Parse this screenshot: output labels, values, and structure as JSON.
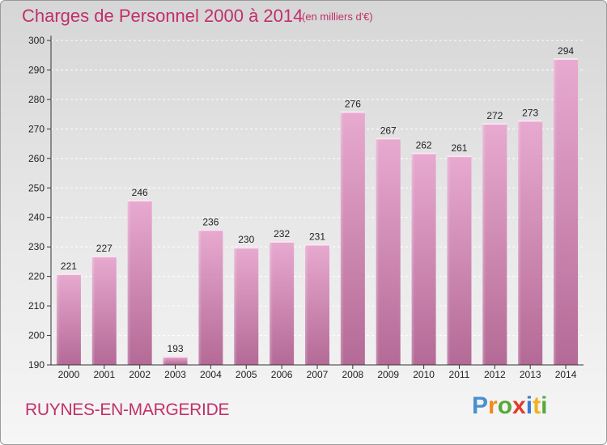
{
  "header": {
    "title": "Charges de Personnel 2000 à 2014",
    "unit": "(en milliers d'€)"
  },
  "footer": {
    "town": "RUYNES-EN-MARGERIDE",
    "logo": "Proxiti"
  },
  "colors": {
    "accent": "#c0306a",
    "bar_light": "#e6a6cc",
    "bar_dark": "#b86e98"
  },
  "chart_data": {
    "type": "bar",
    "title": "Charges de Personnel 2000 à 2014",
    "subtitle": "(en milliers d'€)",
    "categories": [
      "2000",
      "2001",
      "2002",
      "2003",
      "2004",
      "2005",
      "2006",
      "2007",
      "2008",
      "2009",
      "2010",
      "2011",
      "2012",
      "2013",
      "2014"
    ],
    "values": [
      221,
      227,
      246,
      193,
      236,
      230,
      232,
      231,
      276,
      267,
      262,
      261,
      272,
      273,
      294
    ],
    "ylim": [
      190,
      300
    ],
    "yticks": [
      190,
      200,
      210,
      220,
      230,
      240,
      250,
      260,
      270,
      280,
      290,
      300
    ],
    "grid": true,
    "xlabel": "",
    "ylabel": ""
  }
}
